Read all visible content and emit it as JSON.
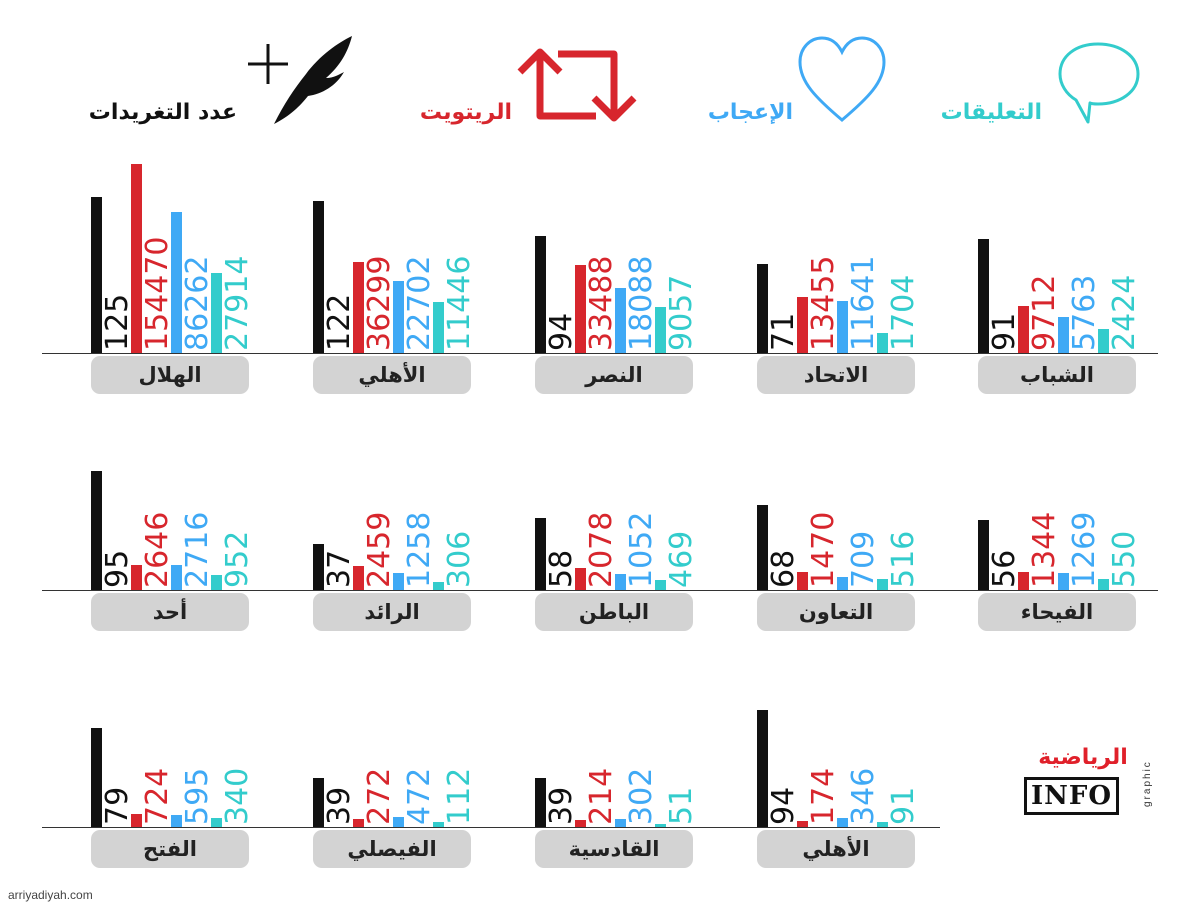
{
  "legend": {
    "tweets": {
      "label": "عدد التغريدات",
      "icon": "quill-plus-icon",
      "color": "#111111"
    },
    "retweets": {
      "label": "الريتويت",
      "icon": "retweet-icon",
      "color": "#d7262d"
    },
    "likes": {
      "label": "الإعجاب",
      "icon": "heart-icon",
      "color": "#3fa9f5"
    },
    "comments": {
      "label": "التعليقات",
      "icon": "speech-bubble-icon",
      "color": "#33cccc"
    }
  },
  "chart_data": {
    "type": "bar",
    "title": "",
    "series_order": [
      "عدد التغريدات",
      "الريتويت",
      "الإعجاب",
      "التعليقات"
    ],
    "series_colors": [
      "#111111",
      "#d7262d",
      "#3fa9f5",
      "#33cccc"
    ],
    "clubs": [
      {
        "name": "الهلال",
        "values": [
          125,
          154470,
          86262,
          27914
        ]
      },
      {
        "name": "الأهلي",
        "values": [
          122,
          36299,
          22702,
          11446
        ]
      },
      {
        "name": "النصر",
        "values": [
          94,
          33488,
          18088,
          9057
        ]
      },
      {
        "name": "الاتحاد",
        "values": [
          71,
          13455,
          11641,
          1704
        ]
      },
      {
        "name": "الشباب",
        "values": [
          91,
          9712,
          5763,
          2424
        ]
      },
      {
        "name": "أحد",
        "values": [
          95,
          2646,
          2716,
          952
        ]
      },
      {
        "name": "الرائد",
        "values": [
          37,
          2459,
          1258,
          306
        ]
      },
      {
        "name": "الباطن",
        "values": [
          58,
          2078,
          1052,
          469
        ]
      },
      {
        "name": "التعاون",
        "values": [
          68,
          1470,
          709,
          516
        ]
      },
      {
        "name": "الفيحاء",
        "values": [
          56,
          1344,
          1269,
          550
        ]
      },
      {
        "name": "الفتح",
        "values": [
          79,
          724,
          595,
          340
        ]
      },
      {
        "name": "الفيصلي",
        "values": [
          39,
          272,
          472,
          112
        ]
      },
      {
        "name": "القادسية",
        "values": [
          39,
          214,
          302,
          51
        ]
      },
      {
        "name": "الأهلي",
        "values": [
          94,
          174,
          346,
          91
        ]
      }
    ]
  },
  "logo": {
    "brand": "الرياضية",
    "info": "INFO",
    "graphic": "graphic"
  },
  "source": "arriyadiyah.com"
}
